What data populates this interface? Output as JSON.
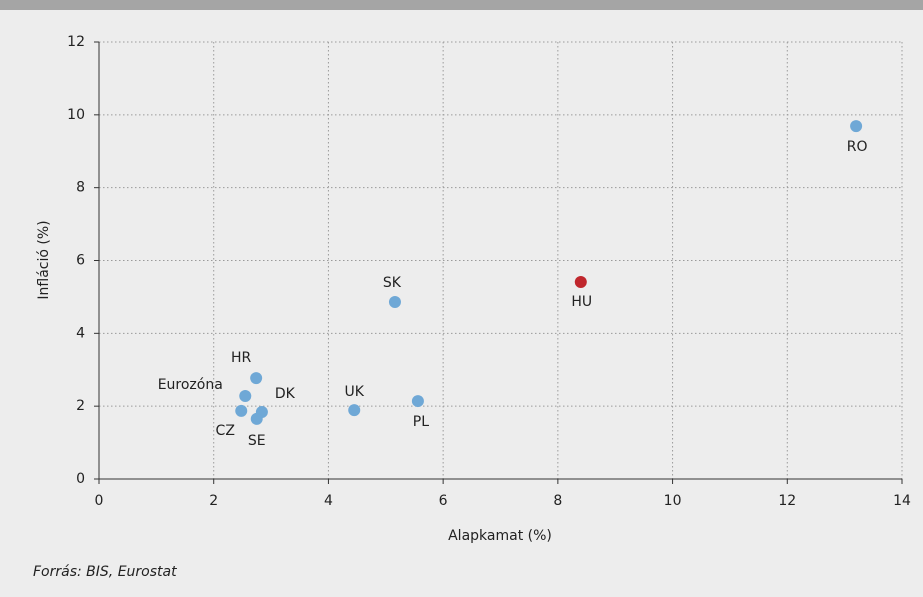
{
  "chart_data": {
    "type": "scatter",
    "xlabel": "Alapkamat (%)",
    "ylabel": "Infláció (%)",
    "source": "Forrás: BIS, Eurostat",
    "labels": [
      "RO",
      "HU",
      "SK",
      "PL",
      "UK",
      "HR",
      "Eurozóna",
      "DK",
      "CZ",
      "SE"
    ],
    "x": [
      13.2,
      8.4,
      5.16,
      5.56,
      4.45,
      2.74,
      2.55,
      2.84,
      2.48,
      2.75
    ],
    "values": [
      9.69,
      5.41,
      4.86,
      2.14,
      1.89,
      2.77,
      2.28,
      1.84,
      1.87,
      1.65
    ],
    "colors": [
      "#6fa8d6",
      "#c0272d",
      "#6fa8d6",
      "#6fa8d6",
      "#6fa8d6",
      "#6fa8d6",
      "#6fa8d6",
      "#6fa8d6",
      "#6fa8d6",
      "#6fa8d6"
    ],
    "xlim": [
      0,
      14
    ],
    "ylim": [
      0,
      12
    ],
    "xticks": [
      0,
      2,
      4,
      6,
      8,
      10,
      12,
      14
    ],
    "yticks": [
      0,
      2,
      4,
      6,
      8,
      10,
      12
    ],
    "grid": true
  }
}
